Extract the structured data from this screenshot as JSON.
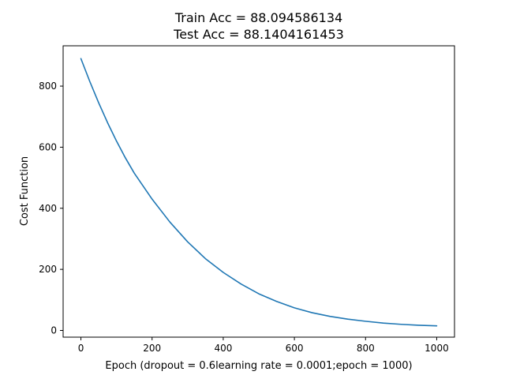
{
  "chart_data": {
    "type": "line",
    "title_lines": [
      "Train Acc = 88.094586134",
      "Test Acc = 88.1404161453"
    ],
    "xlabel": "Epoch (dropout = 0.6learning rate = 0.0001;epoch = 1000)",
    "ylabel": "Cost Function",
    "xlim": [
      -50,
      1050
    ],
    "ylim": [
      -22,
      932
    ],
    "xticks": [
      0,
      200,
      400,
      600,
      800,
      1000
    ],
    "yticks": [
      0,
      200,
      400,
      600,
      800
    ],
    "grid": false,
    "legend": "none",
    "series": [
      {
        "color": "#1f77b4",
        "x": [
          0,
          25,
          50,
          75,
          100,
          125,
          150,
          200,
          250,
          300,
          350,
          400,
          450,
          500,
          550,
          600,
          650,
          700,
          750,
          800,
          850,
          900,
          950,
          1000
        ],
        "y": [
          890,
          815,
          745,
          680,
          620,
          565,
          515,
          430,
          355,
          290,
          235,
          190,
          152,
          120,
          95,
          74,
          58,
          46,
          37,
          30,
          24,
          20,
          17,
          15
        ]
      }
    ]
  }
}
